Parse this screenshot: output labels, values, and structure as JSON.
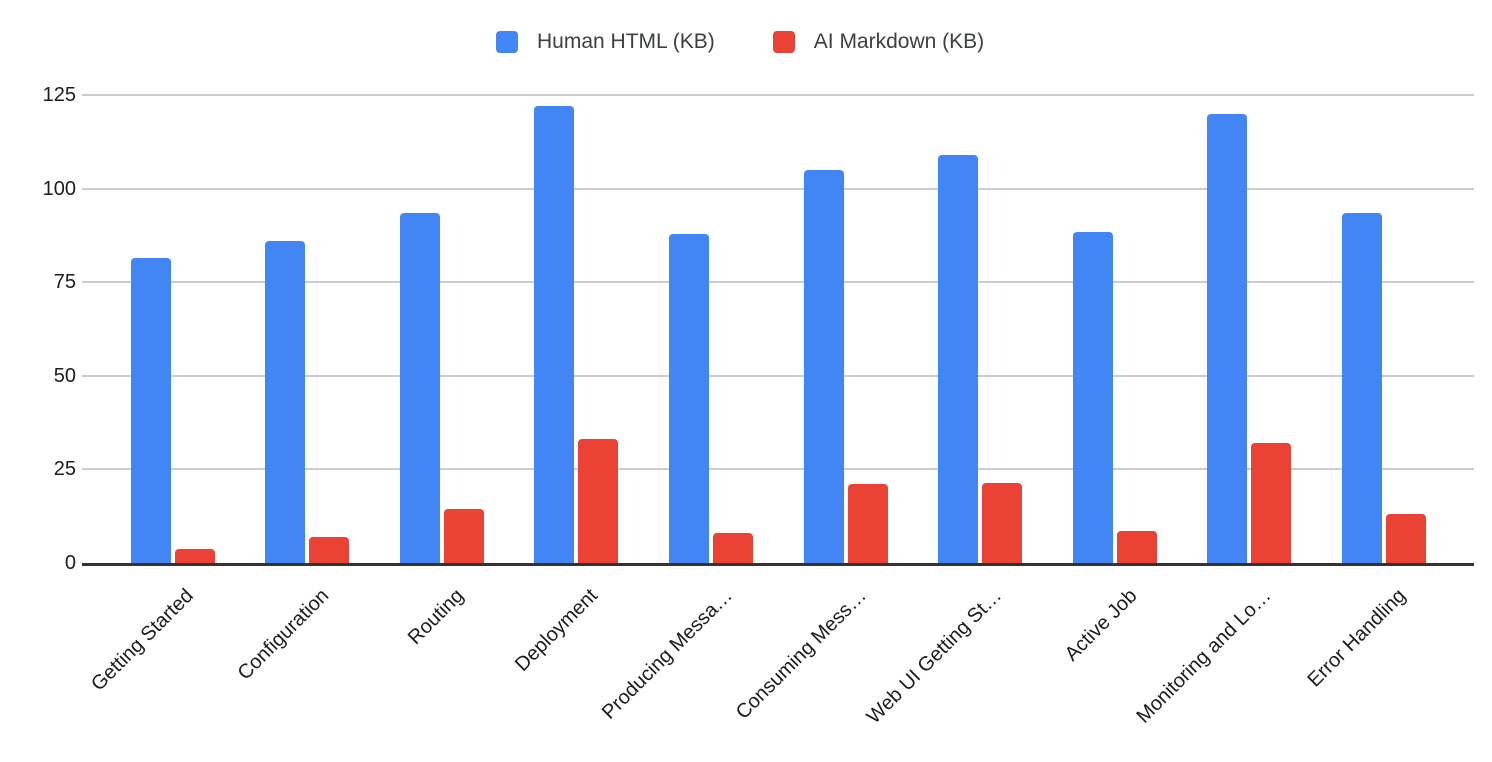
{
  "chart_data": {
    "type": "bar",
    "title": "",
    "xlabel": "",
    "ylabel": "",
    "categories": [
      "Getting Started",
      "Configuration",
      "Routing",
      "Deployment",
      "Producing Messa…",
      "Consuming Mess…",
      "Web UI Getting St…",
      "Active Job",
      "Monitoring and Lo…",
      "Error Handling"
    ],
    "series": [
      {
        "name": "Human HTML (KB)",
        "color": "#4285F4",
        "values": [
          81.5,
          86,
          93.5,
          122,
          88,
          105,
          109,
          88.5,
          120,
          93.5
        ]
      },
      {
        "name": "AI Markdown (KB)",
        "color": "#EA4335",
        "values": [
          3.8,
          7,
          14.5,
          33,
          8,
          21,
          21.5,
          8.5,
          32,
          13
        ]
      }
    ],
    "y_ticks": [
      0,
      25,
      50,
      75,
      100,
      125
    ],
    "ylim": [
      0,
      125
    ],
    "grid": true,
    "legend_position": "top",
    "x_labels_rotated_degrees": 45
  },
  "colors": {
    "background": "#ffffff",
    "gridline": "#cccccc",
    "axis_line": "#333333",
    "axis_text": "#1c1c1c",
    "legend_text": "#3c4043"
  }
}
